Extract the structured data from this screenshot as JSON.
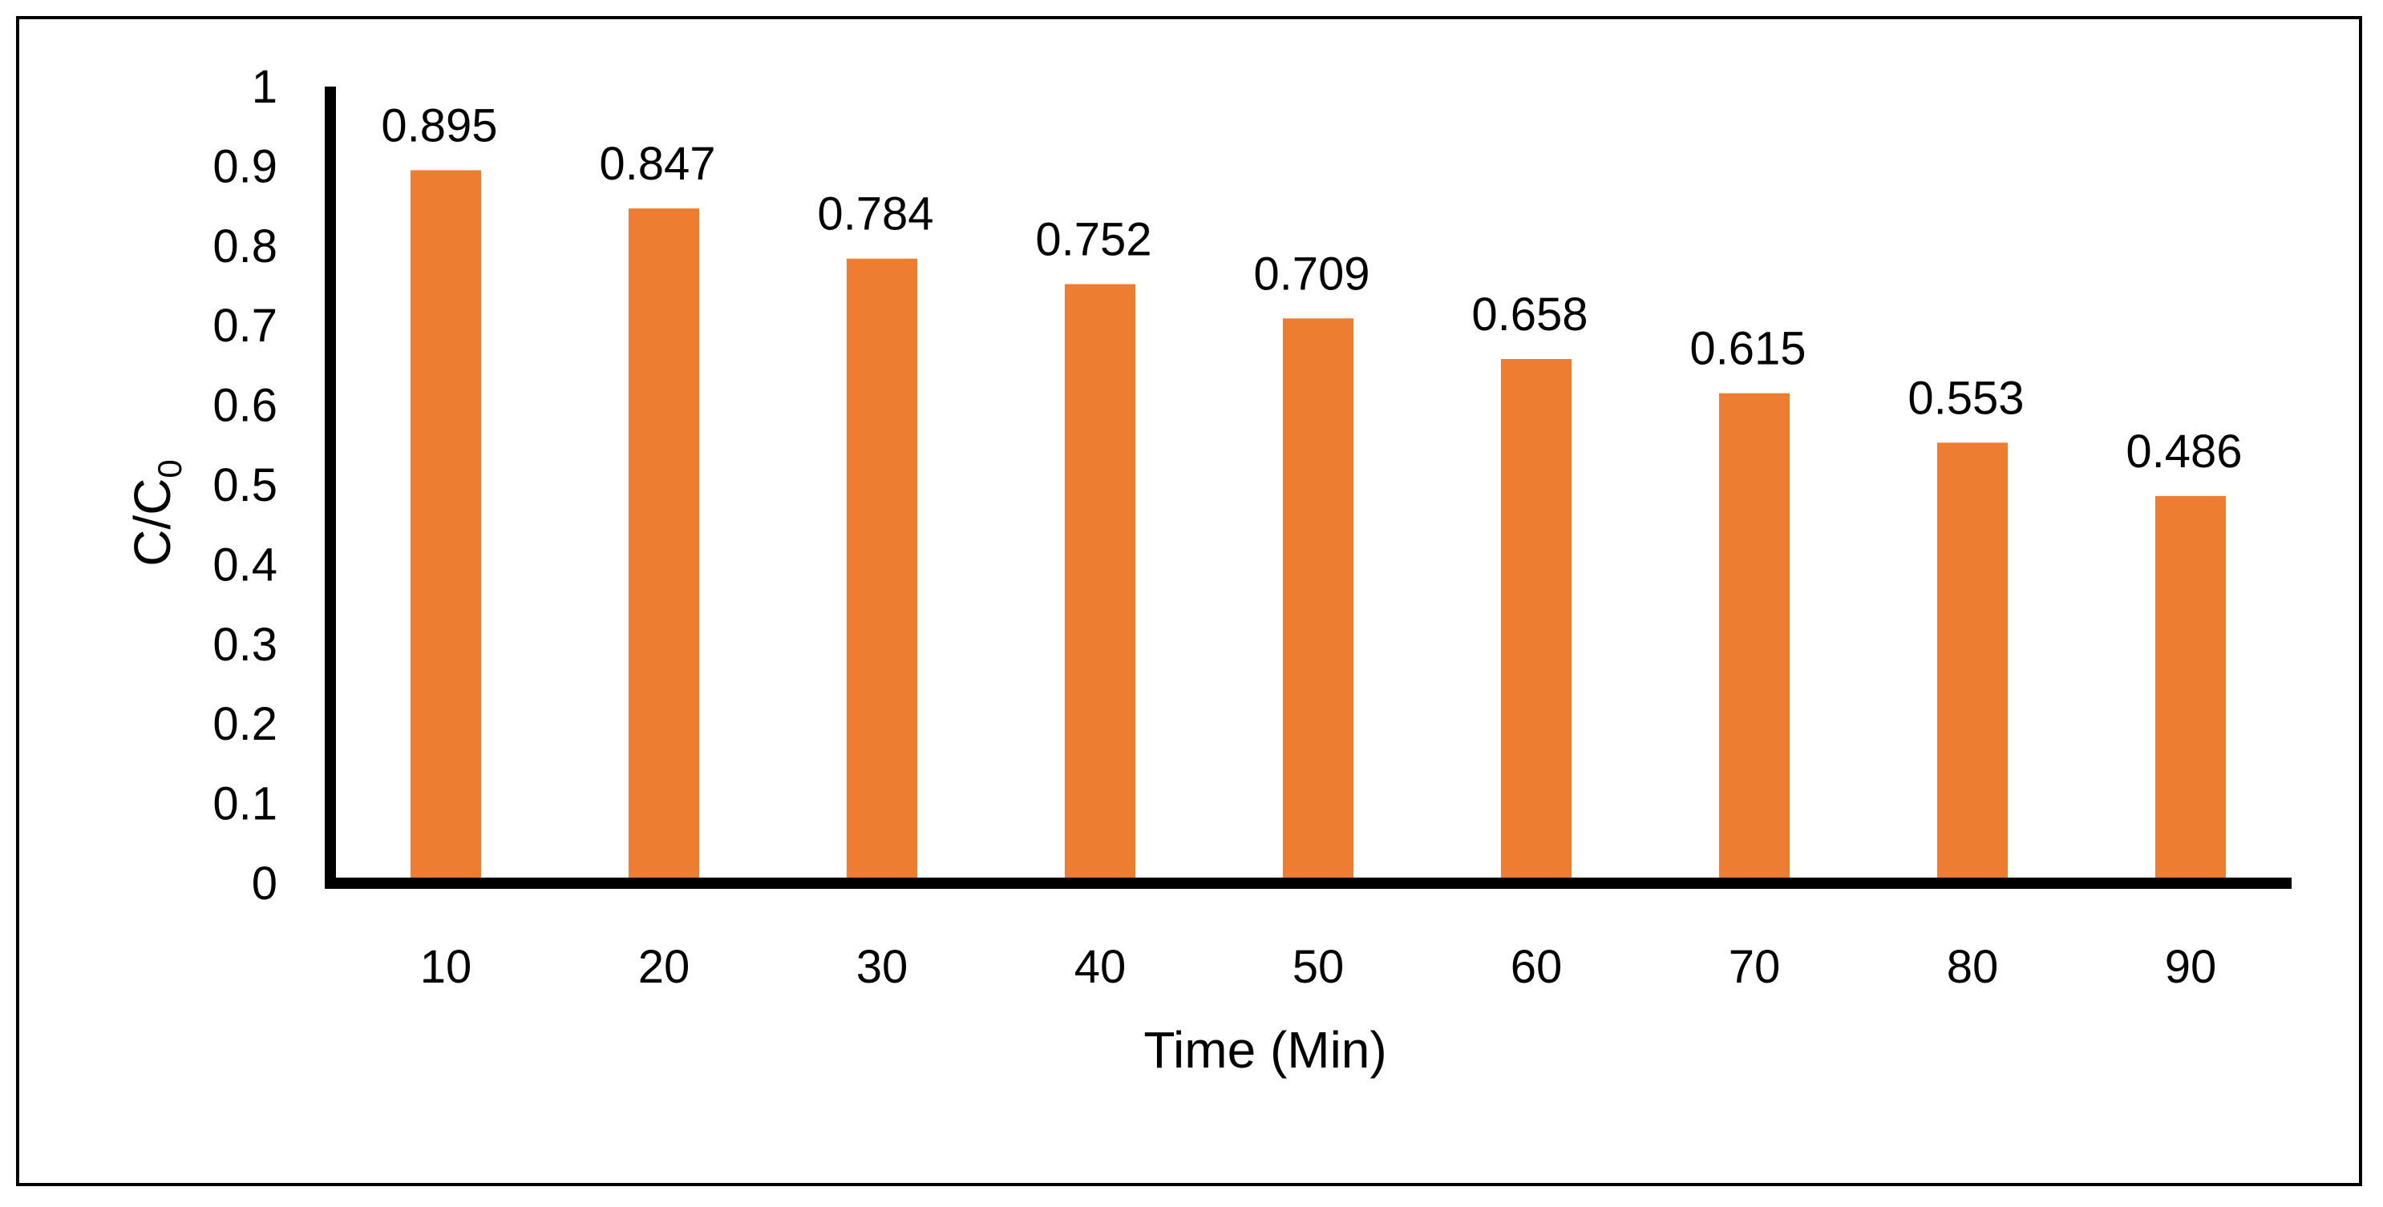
{
  "chart_data": {
    "type": "bar",
    "categories": [
      "10",
      "20",
      "30",
      "40",
      "50",
      "60",
      "70",
      "80",
      "90"
    ],
    "values": [
      0.895,
      0.847,
      0.784,
      0.752,
      0.709,
      0.658,
      0.615,
      0.553,
      0.486
    ],
    "data_labels": [
      "0.895",
      "0.847",
      "0.784",
      "0.752",
      "0.709",
      "0.658",
      "0.615",
      "0.553",
      "0.486"
    ],
    "title": "",
    "xlabel": "Time (Min)",
    "ylabel": {
      "main": "C/C",
      "subscript": "0"
    },
    "ylim": [
      0,
      1
    ],
    "y_ticks": [
      "0",
      "0.1",
      "0.2",
      "0.3",
      "0.4",
      "0.5",
      "0.6",
      "0.7",
      "0.8",
      "0.9",
      "1"
    ],
    "grid": false,
    "legend": "none",
    "bar_color": "#ED7D31",
    "axis_color": "#000000"
  }
}
